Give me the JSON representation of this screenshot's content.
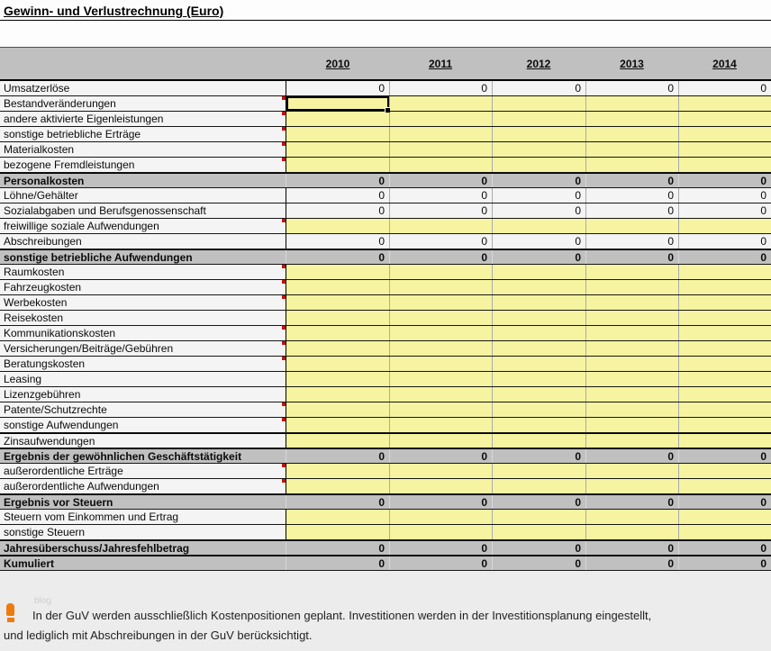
{
  "title": "Gewinn- und Verlustrechnung (Euro)",
  "columns": [
    "2010",
    "2011",
    "2012",
    "2013",
    "2014"
  ],
  "table": {
    "rows": [
      {
        "label": "Umsatzerlöse",
        "type": "data",
        "note": false,
        "values": [
          "0",
          "0",
          "0",
          "0",
          "0"
        ]
      },
      {
        "label": "Bestandveränderungen",
        "type": "input",
        "note": true,
        "selected_col": 0,
        "values": [
          "",
          "",
          "",
          "",
          ""
        ]
      },
      {
        "label": "andere aktivierte Eigenleistungen",
        "type": "input",
        "note": true,
        "values": [
          "",
          "",
          "",
          "",
          ""
        ]
      },
      {
        "label": "sonstige betriebliche Erträge",
        "type": "input",
        "note": true,
        "values": [
          "",
          "",
          "",
          "",
          ""
        ]
      },
      {
        "label": "Materialkosten",
        "type": "input",
        "note": true,
        "values": [
          "",
          "",
          "",
          "",
          ""
        ]
      },
      {
        "label": "bezogene Fremdleistungen",
        "type": "input",
        "note": true,
        "values": [
          "",
          "",
          "",
          "",
          ""
        ]
      },
      {
        "label": "Personalkosten",
        "type": "summary",
        "note": false,
        "values": [
          "0",
          "0",
          "0",
          "0",
          "0"
        ]
      },
      {
        "label": "Löhne/Gehälter",
        "type": "data",
        "note": false,
        "values": [
          "0",
          "0",
          "0",
          "0",
          "0"
        ]
      },
      {
        "label": "Sozialabgaben und Berufsgenossenschaft",
        "type": "data",
        "note": false,
        "values": [
          "0",
          "0",
          "0",
          "0",
          "0"
        ]
      },
      {
        "label": "freiwillige soziale Aufwendungen",
        "type": "input",
        "note": true,
        "values": [
          "",
          "",
          "",
          "",
          ""
        ]
      },
      {
        "label": "Abschreibungen",
        "type": "data",
        "note": false,
        "values": [
          "0",
          "0",
          "0",
          "0",
          "0"
        ]
      },
      {
        "label": "sonstige betriebliche Aufwendungen",
        "type": "summary",
        "note": false,
        "values": [
          "0",
          "0",
          "0",
          "0",
          "0"
        ]
      },
      {
        "label": "Raumkosten",
        "type": "input",
        "note": true,
        "values": [
          "",
          "",
          "",
          "",
          ""
        ]
      },
      {
        "label": "Fahrzeugkosten",
        "type": "input",
        "note": true,
        "values": [
          "",
          "",
          "",
          "",
          ""
        ]
      },
      {
        "label": "Werbekosten",
        "type": "input",
        "note": true,
        "values": [
          "",
          "",
          "",
          "",
          ""
        ]
      },
      {
        "label": "Reisekosten",
        "type": "input",
        "note": false,
        "values": [
          "",
          "",
          "",
          "",
          ""
        ]
      },
      {
        "label": "Kommunikationskosten",
        "type": "input",
        "note": true,
        "values": [
          "",
          "",
          "",
          "",
          ""
        ]
      },
      {
        "label": "Versicherungen/Beiträge/Gebühren",
        "type": "input",
        "note": true,
        "values": [
          "",
          "",
          "",
          "",
          ""
        ]
      },
      {
        "label": "Beratungskosten",
        "type": "input",
        "note": true,
        "values": [
          "",
          "",
          "",
          "",
          ""
        ]
      },
      {
        "label": "Leasing",
        "type": "input",
        "note": false,
        "values": [
          "",
          "",
          "",
          "",
          ""
        ]
      },
      {
        "label": "Lizenzgebühren",
        "type": "input",
        "note": false,
        "values": [
          "",
          "",
          "",
          "",
          ""
        ]
      },
      {
        "label": "Patente/Schutzrechte",
        "type": "input",
        "note": true,
        "values": [
          "",
          "",
          "",
          "",
          ""
        ]
      },
      {
        "label": "sonstige Aufwendungen",
        "type": "input",
        "note": true,
        "values": [
          "",
          "",
          "",
          "",
          ""
        ]
      },
      {
        "label": "Zinsaufwendungen",
        "type": "input",
        "note": false,
        "values": [
          "",
          "",
          "",
          "",
          ""
        ]
      },
      {
        "label": "Ergebnis der gewöhnlichen Geschäftstätigkeit",
        "type": "summary",
        "note": false,
        "values": [
          "0",
          "0",
          "0",
          "0",
          "0"
        ]
      },
      {
        "label": "außerordentliche Erträge",
        "type": "input",
        "note": true,
        "values": [
          "",
          "",
          "",
          "",
          ""
        ]
      },
      {
        "label": "außerordentliche Aufwendungen",
        "type": "input",
        "note": true,
        "values": [
          "",
          "",
          "",
          "",
          ""
        ]
      },
      {
        "label": "Ergebnis vor Steuern",
        "type": "summary",
        "note": false,
        "values": [
          "0",
          "0",
          "0",
          "0",
          "0"
        ]
      },
      {
        "label": "Steuern vom Einkommen und Ertrag",
        "type": "input",
        "note": false,
        "values": [
          "",
          "",
          "",
          "",
          ""
        ]
      },
      {
        "label": "sonstige Steuern",
        "type": "input",
        "note": false,
        "values": [
          "",
          "",
          "",
          "",
          ""
        ]
      },
      {
        "label": "Jahresüberschuss/Jahresfehlbetrag",
        "type": "summary",
        "note": false,
        "values": [
          "0",
          "0",
          "0",
          "0",
          "0"
        ]
      },
      {
        "label": "Kumuliert",
        "type": "summary",
        "note": false,
        "values": [
          "0",
          "0",
          "0",
          "0",
          "0"
        ]
      }
    ]
  },
  "footer": {
    "watermark": "blog",
    "note_line1": "In der GuV werden ausschließlich Kostenpositionen geplant. Investitionen werden in der Investitionsplanung eingestellt,",
    "note_line2": "und lediglich mit Abschreibungen in der GuV berücksichtigt."
  },
  "colors": {
    "input_yellow": "#f6f4a0",
    "header_gray": "#c0c0c0",
    "cell_white": "#f4f4f4",
    "comment_red": "#c11212",
    "icon_orange": "#ee7b0e",
    "selection_black": "#000000"
  }
}
